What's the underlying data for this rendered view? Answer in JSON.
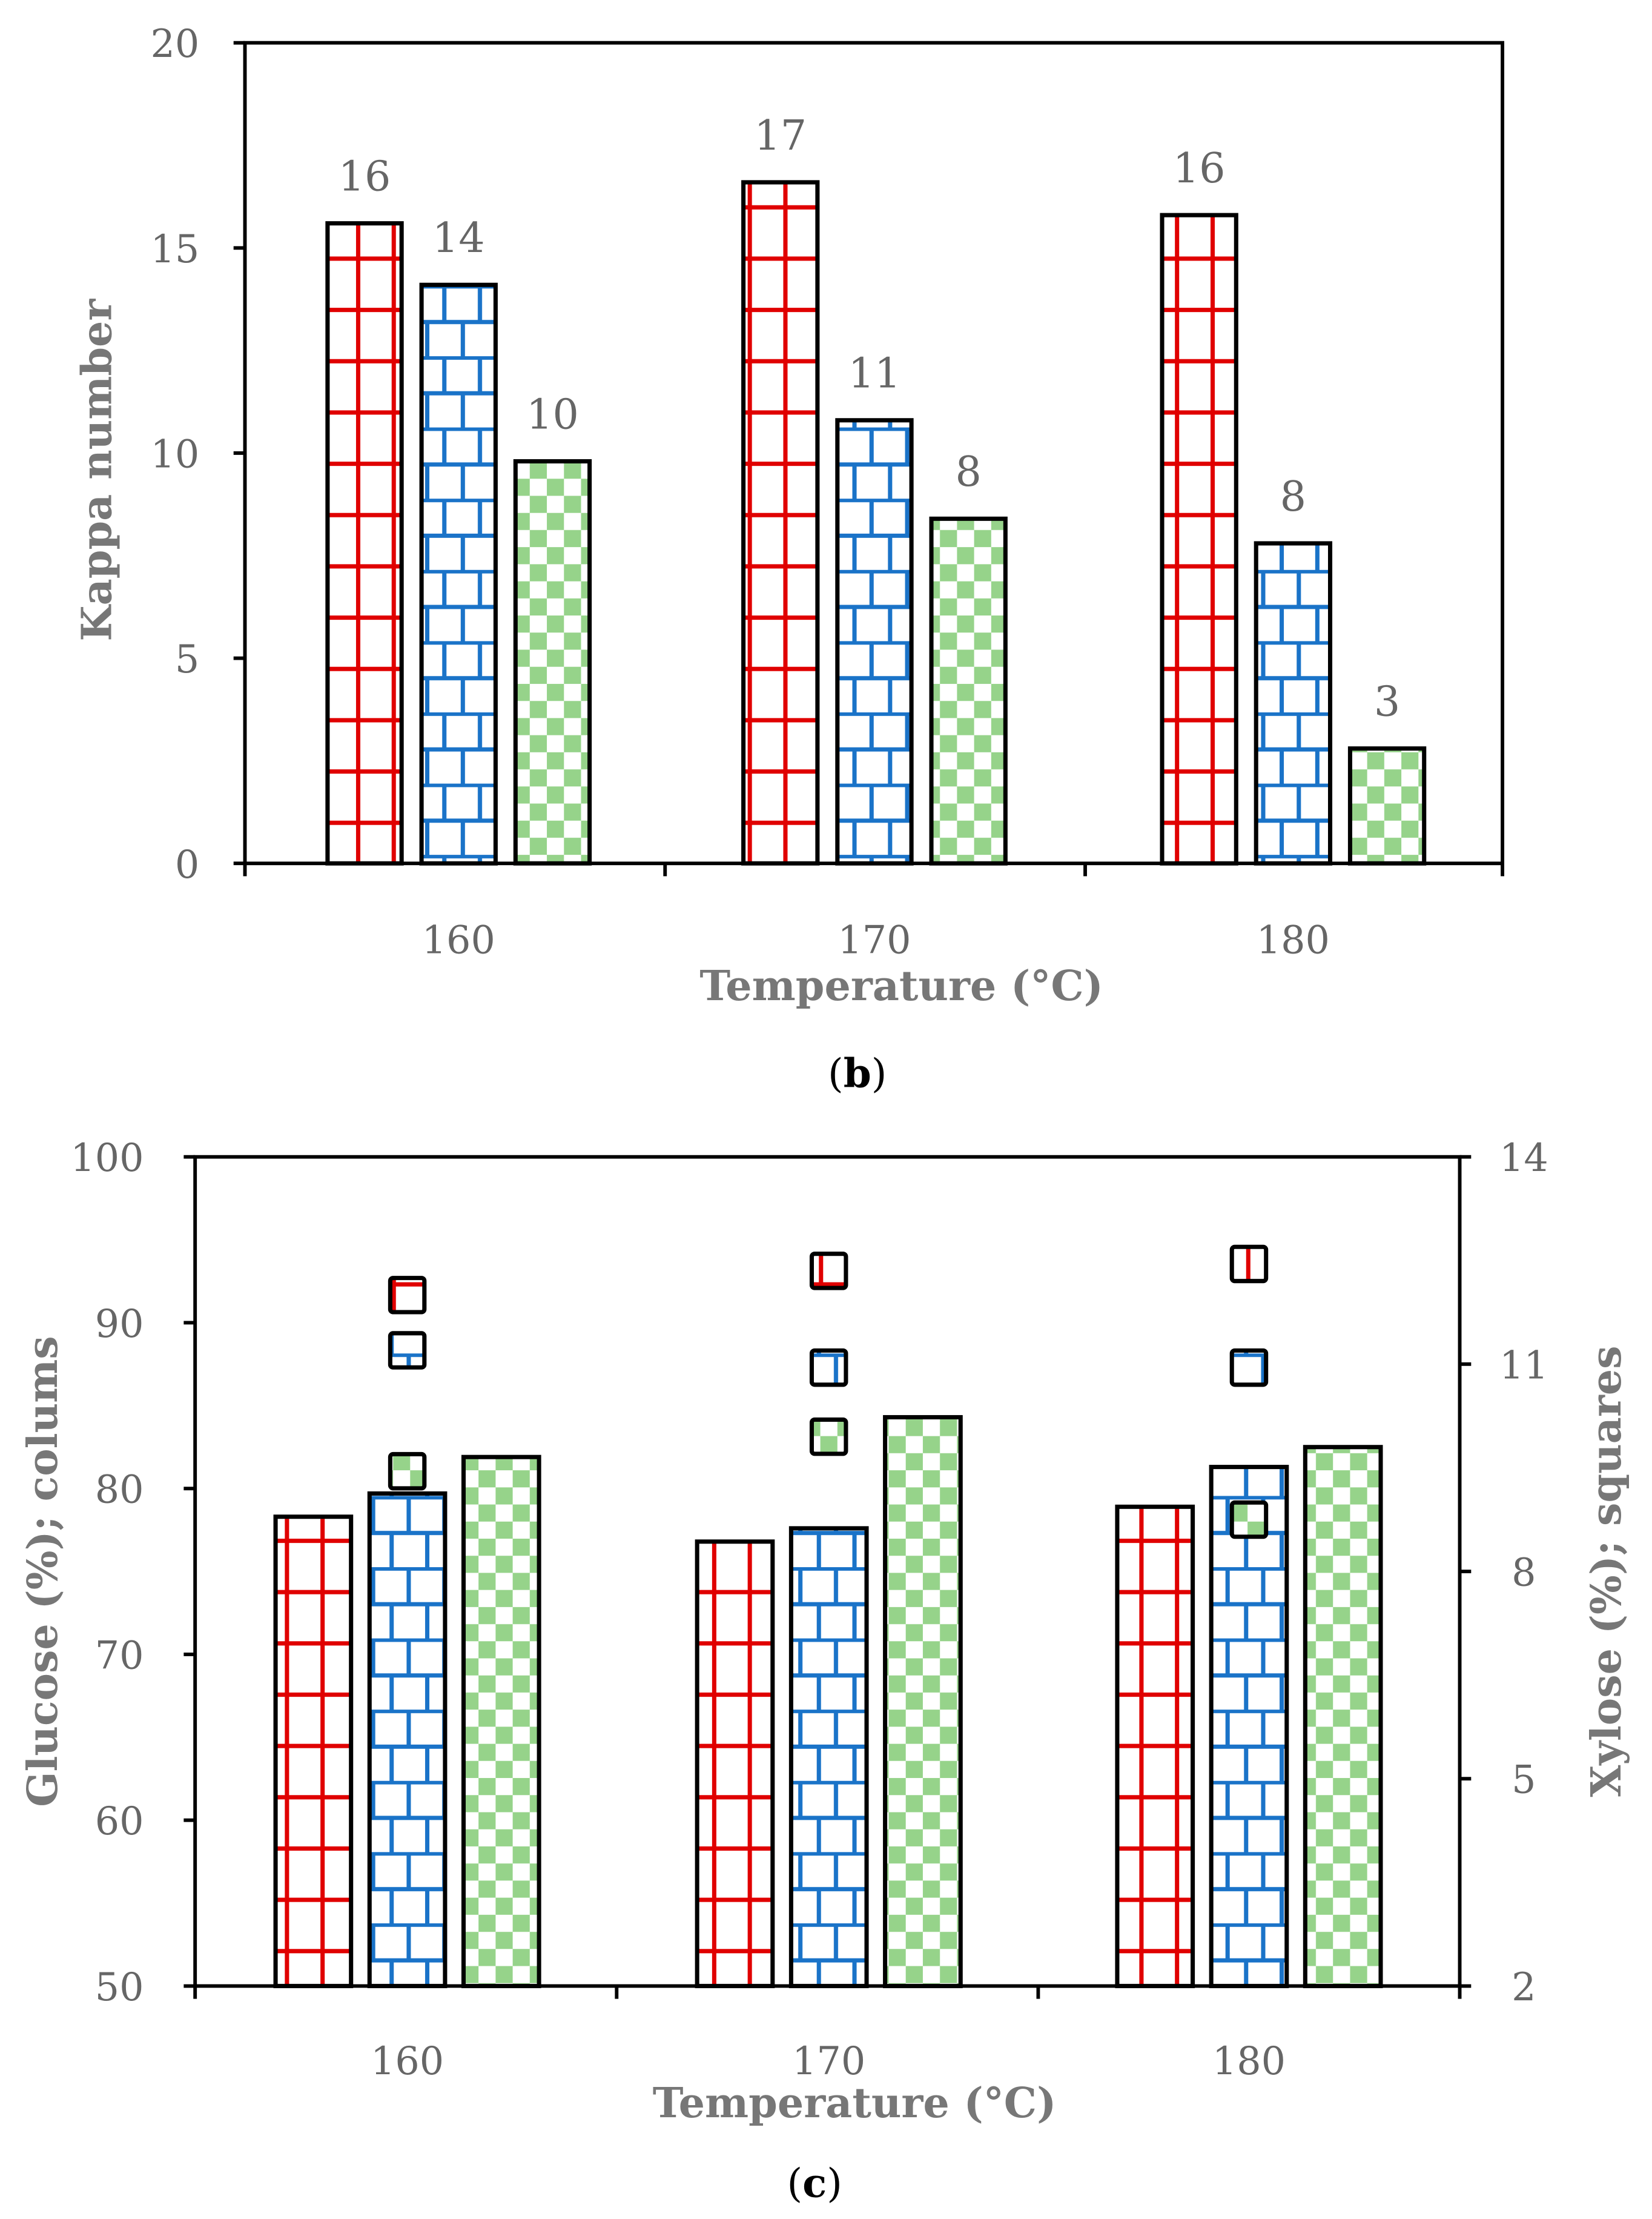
{
  "colors": {
    "red": "#e00000",
    "blue": "#1a73c8",
    "green": "#96d38a",
    "axis": "#000000",
    "text": "#666666"
  },
  "chart_data": [
    {
      "type": "bar",
      "panel": "b",
      "caption_letter": "b",
      "xlabel": "Temperature (°C)",
      "ylabel": "Kappa number",
      "categories": [
        "160",
        "170",
        "180"
      ],
      "ylim": [
        0,
        20
      ],
      "yticks": [
        "0",
        "5",
        "10",
        "15",
        "20"
      ],
      "series": [
        {
          "name": "series-1",
          "pattern": "grid-red",
          "values": [
            15.6,
            16.6,
            15.8
          ],
          "labels": [
            "16",
            "17",
            "16"
          ]
        },
        {
          "name": "series-2",
          "pattern": "brick-blue",
          "values": [
            14.1,
            10.8,
            7.8
          ],
          "labels": [
            "14",
            "11",
            "8"
          ]
        },
        {
          "name": "series-3",
          "pattern": "checker-green",
          "values": [
            9.8,
            8.4,
            2.8
          ],
          "labels": [
            "10",
            "8",
            "3"
          ]
        }
      ]
    },
    {
      "type": "bar",
      "panel": "c",
      "caption_letter": "c",
      "xlabel": "Temperature (°C)",
      "ylabel": "Glucose (%); colums",
      "y2label": "Xylose (%); squares",
      "categories": [
        "160",
        "170",
        "180"
      ],
      "ylim": [
        50,
        100
      ],
      "yticks": [
        "50",
        "60",
        "70",
        "80",
        "90",
        "100"
      ],
      "y2lim": [
        2,
        14
      ],
      "y2ticks": [
        "2",
        "5",
        "8",
        "11",
        "14"
      ],
      "series": [
        {
          "name": "series-1",
          "pattern": "grid-red",
          "glucose": [
            78.3,
            76.8,
            78.9
          ],
          "xylose": [
            12.0,
            12.35,
            12.45
          ]
        },
        {
          "name": "series-2",
          "pattern": "brick-blue",
          "glucose": [
            79.7,
            77.6,
            81.3
          ],
          "xylose": [
            11.2,
            10.95,
            10.95
          ]
        },
        {
          "name": "series-3",
          "pattern": "checker-green",
          "glucose": [
            81.9,
            84.3,
            82.5
          ],
          "xylose": [
            9.45,
            9.95,
            8.75
          ]
        }
      ]
    }
  ]
}
